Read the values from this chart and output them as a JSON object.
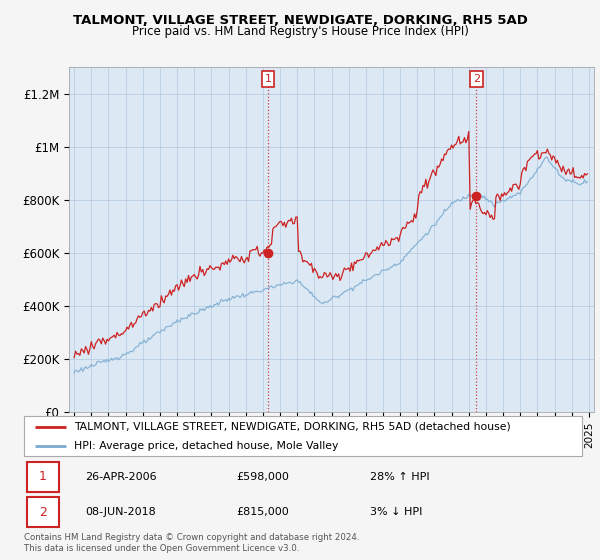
{
  "title": "TALMONT, VILLAGE STREET, NEWDIGATE, DORKING, RH5 5AD",
  "subtitle": "Price paid vs. HM Land Registry's House Price Index (HPI)",
  "ylabel_ticks": [
    "£0",
    "£200K",
    "£400K",
    "£600K",
    "£800K",
    "£1M",
    "£1.2M"
  ],
  "ytick_vals": [
    0,
    200000,
    400000,
    600000,
    800000,
    1000000,
    1200000
  ],
  "ylim": [
    0,
    1300000
  ],
  "xlim_start": 1994.7,
  "xlim_end": 2025.3,
  "sale1_x": 2006.29,
  "sale1_y": 598000,
  "sale2_x": 2018.44,
  "sale2_y": 815000,
  "legend_line1": "TALMONT, VILLAGE STREET, NEWDIGATE, DORKING, RH5 5AD (detached house)",
  "legend_line2": "HPI: Average price, detached house, Mole Valley",
  "footnote": "Contains HM Land Registry data © Crown copyright and database right 2024.\nThis data is licensed under the Open Government Licence v3.0.",
  "line_color_red": "#cc2222",
  "line_color_blue": "#7aaad0",
  "bg_color": "#dce9f5",
  "fig_bg": "#f5f5f5",
  "grid_color": "#b0c8e0",
  "legend_border": "#aaaaaa"
}
